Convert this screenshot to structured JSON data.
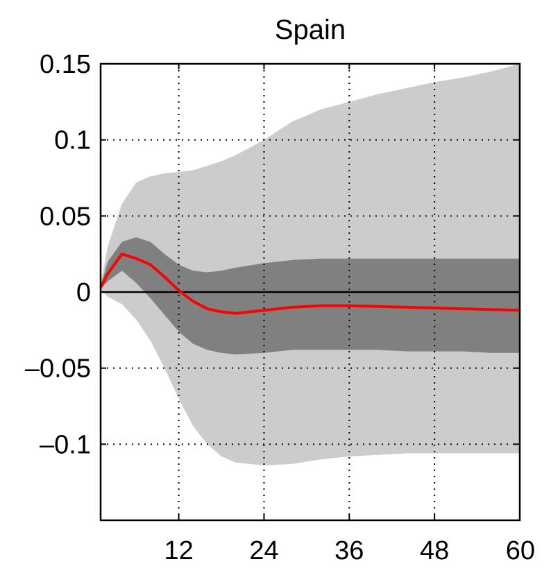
{
  "chart_data": {
    "type": "area",
    "title": "Spain",
    "xlabel": "",
    "ylabel": "",
    "xlim": [
      1,
      60
    ],
    "ylim": [
      -0.15,
      0.15
    ],
    "x_ticks": [
      12,
      24,
      36,
      48,
      60
    ],
    "x_tick_labels": [
      "12",
      "24",
      "36",
      "48",
      "60"
    ],
    "y_ticks": [
      0.15,
      0.1,
      0.05,
      0,
      -0.05,
      -0.1
    ],
    "y_tick_labels": [
      "0.15",
      "0.1",
      "0.05",
      "0",
      "–0.05",
      "–0.1"
    ],
    "grid": true,
    "zero_line": true,
    "colors": {
      "outer_band": "#cccccc",
      "inner_band": "#808080",
      "median": "#ff0000",
      "zero_line": "#000000"
    },
    "x": [
      1,
      2,
      4,
      6,
      8,
      10,
      12,
      14,
      16,
      18,
      20,
      24,
      28,
      32,
      36,
      40,
      44,
      48,
      52,
      56,
      60
    ],
    "series": [
      {
        "role": "outer_band_upper",
        "values": [
          0.005,
          0.03,
          0.058,
          0.072,
          0.076,
          0.078,
          0.079,
          0.08,
          0.083,
          0.086,
          0.09,
          0.1,
          0.112,
          0.12,
          0.125,
          0.13,
          0.134,
          0.138,
          0.141,
          0.145,
          0.15
        ]
      },
      {
        "role": "outer_band_lower",
        "values": [
          0.002,
          -0.003,
          -0.008,
          -0.018,
          -0.032,
          -0.05,
          -0.07,
          -0.088,
          -0.1,
          -0.108,
          -0.112,
          -0.114,
          -0.113,
          -0.11,
          -0.108,
          -0.107,
          -0.106,
          -0.106,
          -0.106,
          -0.106,
          -0.106
        ]
      },
      {
        "role": "inner_band_upper",
        "values": [
          0.004,
          0.02,
          0.033,
          0.036,
          0.033,
          0.025,
          0.018,
          0.014,
          0.013,
          0.014,
          0.016,
          0.019,
          0.021,
          0.022,
          0.022,
          0.022,
          0.022,
          0.022,
          0.022,
          0.022,
          0.022
        ]
      },
      {
        "role": "inner_band_lower",
        "values": [
          0.002,
          0.007,
          0.014,
          0.006,
          -0.004,
          -0.015,
          -0.026,
          -0.034,
          -0.038,
          -0.04,
          -0.041,
          -0.04,
          -0.038,
          -0.038,
          -0.038,
          -0.038,
          -0.039,
          -0.039,
          -0.039,
          -0.04,
          -0.04
        ]
      },
      {
        "role": "median",
        "values": [
          0.003,
          0.012,
          0.025,
          0.022,
          0.018,
          0.01,
          0.001,
          -0.006,
          -0.011,
          -0.013,
          -0.014,
          -0.012,
          -0.01,
          -0.009,
          -0.009,
          -0.0095,
          -0.01,
          -0.0105,
          -0.011,
          -0.0115,
          -0.012
        ]
      }
    ]
  }
}
